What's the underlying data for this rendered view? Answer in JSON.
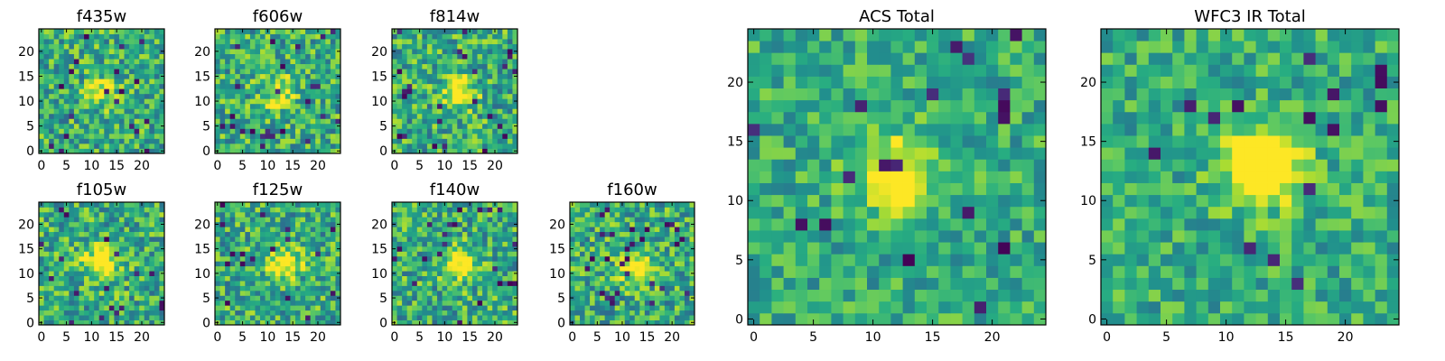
{
  "chart_data": [
    {
      "type": "heatmap",
      "title": "f435w",
      "xticks": [
        "0",
        "5",
        "10",
        "15",
        "20"
      ],
      "yticks": [
        "0",
        "5",
        "10",
        "15",
        "20"
      ],
      "grid_size": 25,
      "xlim": [
        0,
        24
      ],
      "ylim": [
        0,
        24
      ],
      "colormap": "viridis",
      "source_peak": [
        12,
        12
      ],
      "source_strength": 0.3
    },
    {
      "type": "heatmap",
      "title": "f606w",
      "xticks": [
        "0",
        "5",
        "10",
        "15",
        "20"
      ],
      "yticks": [
        "0",
        "5",
        "10",
        "15",
        "20"
      ],
      "grid_size": 25,
      "xlim": [
        0,
        24
      ],
      "ylim": [
        0,
        24
      ],
      "colormap": "viridis",
      "source_peak": [
        12,
        12
      ],
      "source_strength": 0.4
    },
    {
      "type": "heatmap",
      "title": "f814w",
      "xticks": [
        "0",
        "5",
        "10",
        "15",
        "20"
      ],
      "yticks": [
        "0",
        "5",
        "10",
        "15",
        "20"
      ],
      "grid_size": 25,
      "xlim": [
        0,
        24
      ],
      "ylim": [
        0,
        24
      ],
      "colormap": "viridis",
      "source_peak": [
        13,
        12
      ],
      "source_strength": 0.45
    },
    {
      "type": "heatmap",
      "title": "f105w",
      "xticks": [
        "0",
        "5",
        "10",
        "15",
        "20"
      ],
      "yticks": [
        "0",
        "5",
        "10",
        "15",
        "20"
      ],
      "grid_size": 25,
      "xlim": [
        0,
        24
      ],
      "ylim": [
        0,
        24
      ],
      "colormap": "viridis",
      "source_peak": [
        12,
        12
      ],
      "source_strength": 0.6
    },
    {
      "type": "heatmap",
      "title": "f125w",
      "xticks": [
        "0",
        "5",
        "10",
        "15",
        "20"
      ],
      "yticks": [
        "0",
        "5",
        "10",
        "15",
        "20"
      ],
      "grid_size": 25,
      "xlim": [
        0,
        24
      ],
      "ylim": [
        0,
        24
      ],
      "colormap": "viridis",
      "source_peak": [
        13,
        12
      ],
      "source_strength": 0.55
    },
    {
      "type": "heatmap",
      "title": "f140w",
      "xticks": [
        "0",
        "5",
        "10",
        "15",
        "20"
      ],
      "yticks": [
        "0",
        "5",
        "10",
        "15",
        "20"
      ],
      "grid_size": 25,
      "xlim": [
        0,
        24
      ],
      "ylim": [
        0,
        24
      ],
      "colormap": "viridis",
      "source_peak": [
        13,
        12
      ],
      "source_strength": 0.55
    },
    {
      "type": "heatmap",
      "title": "f160w",
      "xticks": [
        "0",
        "5",
        "10",
        "15",
        "20"
      ],
      "yticks": [
        "0",
        "5",
        "10",
        "15",
        "20"
      ],
      "grid_size": 25,
      "xlim": [
        0,
        24
      ],
      "ylim": [
        0,
        24
      ],
      "colormap": "viridis",
      "source_peak": [
        13,
        11
      ],
      "source_strength": 0.55
    },
    {
      "type": "heatmap",
      "title": "ACS Total",
      "xticks": [
        "0",
        "5",
        "10",
        "15",
        "20"
      ],
      "yticks": [
        "0",
        "5",
        "10",
        "15",
        "20"
      ],
      "grid_size": 25,
      "xlim": [
        0,
        24
      ],
      "ylim": [
        0,
        24
      ],
      "colormap": "viridis",
      "source_peak": [
        12,
        12
      ],
      "source_strength": 0.55
    },
    {
      "type": "heatmap",
      "title": "WFC3 IR Total",
      "xticks": [
        "0",
        "5",
        "10",
        "15",
        "20"
      ],
      "yticks": [
        "0",
        "5",
        "10",
        "15",
        "20"
      ],
      "grid_size": 25,
      "xlim": [
        0,
        24
      ],
      "ylim": [
        0,
        24
      ],
      "colormap": "viridis",
      "source_peak": [
        13,
        13
      ],
      "source_strength": 0.7
    }
  ]
}
